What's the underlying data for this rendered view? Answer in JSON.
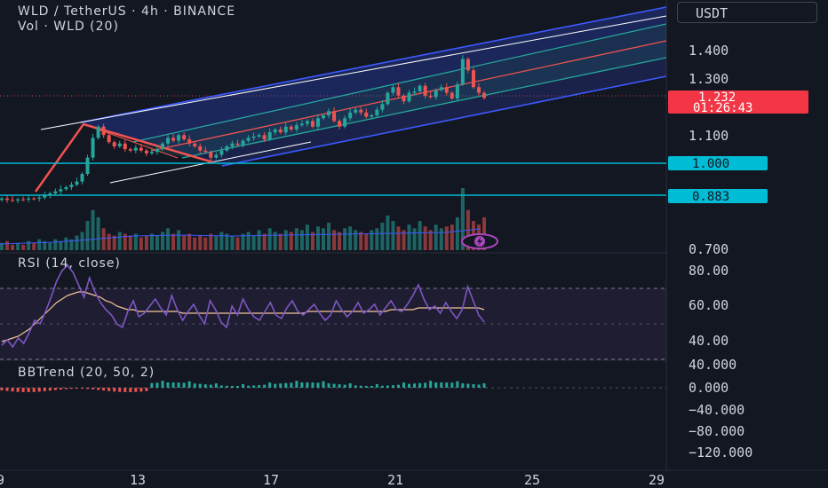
{
  "header": {
    "symbol_line": "WLD / TetherUS · 4h · BINANCE",
    "volume_line": "Vol · WLD (20)",
    "currency_button": "USDT"
  },
  "price_axis": {
    "ticks": [
      "1.400",
      "1.300",
      "1.100",
      "0.700"
    ],
    "last_price": "1.232",
    "countdown": "01:26:43",
    "level_upper": "1.000",
    "level_lower": "0.883"
  },
  "time_axis": {
    "ticks": [
      "9",
      "13",
      "17",
      "21",
      "25",
      "29"
    ]
  },
  "colors": {
    "background": "#131722",
    "up": "#26a69a",
    "down": "#ef5350",
    "channel_border": "#3d5afe",
    "channel_mid": "#26a69a",
    "channel_center": "#ef5350",
    "level_line": "#00bcd4",
    "rsi_line": "#7e57c2",
    "rsi_ma": "#f5c59a",
    "price_label_bg": "#f23645",
    "level_label_bg": "#00bcd4"
  },
  "rsi": {
    "label": "RSI (14, close)",
    "ticks": [
      "80.00",
      "60.00",
      "40.00"
    ],
    "upper": 70,
    "lower": 30,
    "values": [
      38,
      41,
      37,
      42,
      39,
      45,
      52,
      50,
      57,
      65,
      74,
      80,
      83,
      79,
      72,
      65,
      76,
      68,
      62,
      58,
      55,
      50,
      48,
      57,
      63,
      54,
      56,
      60,
      64,
      59,
      55,
      66,
      58,
      52,
      57,
      61,
      55,
      50,
      63,
      58,
      51,
      48,
      60,
      55,
      64,
      58,
      54,
      52,
      57,
      62,
      55,
      53,
      59,
      63,
      57,
      55,
      58,
      61,
      56,
      52,
      55,
      63,
      58,
      54,
      57,
      62,
      56,
      58,
      61,
      55,
      59,
      63,
      58,
      57,
      61,
      66,
      72,
      64,
      58,
      60,
      56,
      62,
      57,
      53,
      58,
      71,
      63,
      55,
      51
    ],
    "ma": [
      40,
      41,
      42,
      43,
      45,
      47,
      50,
      53,
      56,
      59,
      62,
      64,
      66,
      67,
      68,
      68,
      67,
      66,
      65,
      63,
      62,
      60,
      59,
      58,
      58,
      57,
      57,
      57,
      57,
      57,
      57,
      57,
      57,
      56,
      56,
      56,
      56,
      56,
      56,
      56,
      56,
      56,
      56,
      56,
      56,
      56,
      56,
      56,
      56,
      56,
      56,
      56,
      56,
      56,
      56,
      56,
      57,
      57,
      57,
      57,
      57,
      57,
      57,
      57,
      57,
      57,
      57,
      57,
      57,
      57,
      57,
      58,
      58,
      58,
      58,
      58,
      59,
      59,
      59,
      59,
      59,
      59,
      59,
      59,
      59,
      59,
      59,
      59,
      58
    ]
  },
  "bbtrend": {
    "label": "BBTrend (20, 50, 2)",
    "ticks": [
      "40.000",
      "0.000",
      "−40.000",
      "−80.000",
      "−120.000"
    ]
  },
  "chart_data": {
    "type": "candlestick",
    "title": "WLD / TetherUS · 4h · BINANCE",
    "x_ticks": [
      "9",
      "13",
      "17",
      "21",
      "25",
      "29"
    ],
    "price_levels": [
      1.0,
      0.883
    ],
    "last_price": 1.232,
    "volume_series": "Vol · WLD (20)",
    "closes": [
      0.875,
      0.87,
      0.868,
      0.872,
      0.871,
      0.875,
      0.874,
      0.878,
      0.885,
      0.893,
      0.9,
      0.908,
      0.915,
      0.924,
      0.935,
      0.962,
      1.02,
      1.09,
      1.13,
      1.1,
      1.075,
      1.06,
      1.07,
      1.05,
      1.045,
      1.055,
      1.045,
      1.035,
      1.04,
      1.05,
      1.07,
      1.09,
      1.08,
      1.1,
      1.085,
      1.07,
      1.06,
      1.045,
      1.04,
      1.02,
      1.03,
      1.045,
      1.06,
      1.07,
      1.065,
      1.08,
      1.09,
      1.095,
      1.1,
      1.085,
      1.11,
      1.12,
      1.11,
      1.13,
      1.12,
      1.135,
      1.14,
      1.15,
      1.13,
      1.16,
      1.17,
      1.185,
      1.15,
      1.13,
      1.16,
      1.18,
      1.19,
      1.18,
      1.165,
      1.17,
      1.19,
      1.21,
      1.25,
      1.27,
      1.24,
      1.22,
      1.25,
      1.255,
      1.275,
      1.24,
      1.235,
      1.26,
      1.27,
      1.25,
      1.23,
      1.28,
      1.37,
      1.33,
      1.27,
      1.25,
      1.232
    ],
    "volumes": [
      4,
      5,
      3,
      4,
      3,
      5,
      4,
      6,
      5,
      4,
      6,
      5,
      7,
      6,
      8,
      10,
      16,
      22,
      18,
      12,
      9,
      8,
      10,
      9,
      8,
      9,
      7,
      8,
      9,
      8,
      10,
      12,
      9,
      11,
      8,
      9,
      7,
      8,
      7,
      9,
      8,
      10,
      9,
      8,
      7,
      9,
      10,
      8,
      11,
      9,
      12,
      10,
      9,
      11,
      10,
      12,
      11,
      14,
      10,
      13,
      12,
      15,
      11,
      10,
      12,
      13,
      11,
      10,
      9,
      11,
      12,
      15,
      19,
      16,
      13,
      11,
      14,
      12,
      16,
      13,
      11,
      14,
      12,
      13,
      14,
      18,
      34,
      22,
      16,
      14,
      18
    ],
    "rsi": {
      "name": "RSI (14, close)",
      "ylim": [
        35,
        88
      ]
    },
    "bbtrend": {
      "name": "BBTrend (20, 50, 2)"
    }
  }
}
